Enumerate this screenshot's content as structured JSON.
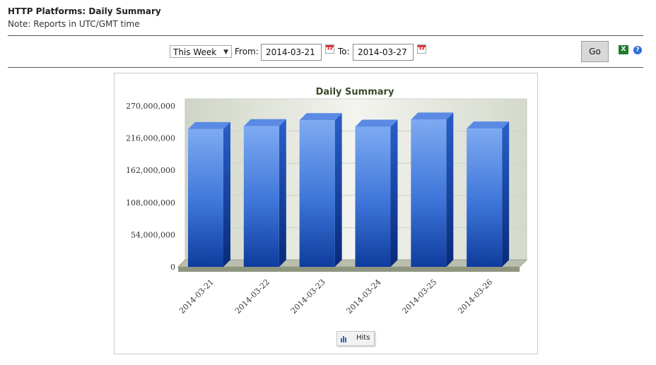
{
  "page": {
    "title": "HTTP Platforms: Daily Summary",
    "note": "Note: Reports in UTC/GMT time"
  },
  "filter": {
    "period": "This Week",
    "from_label": "From:",
    "from_value": "2014-03-21",
    "to_label": "To:",
    "to_value": "2014-03-27",
    "calendar_icon": "calendar-icon",
    "go_label": "Go",
    "export_icon": "excel-export-icon",
    "help_icon": "help-icon"
  },
  "chart_data": {
    "type": "bar",
    "title": "Daily Summary",
    "categories": [
      "2014-03-21",
      "2014-03-22",
      "2014-03-23",
      "2014-03-24",
      "2014-03-25",
      "2014-03-26"
    ],
    "series": [
      {
        "name": "Hits",
        "values": [
          231000000,
          236000000,
          246000000,
          235000000,
          247000000,
          232000000
        ]
      }
    ],
    "ylim": [
      0,
      270000000
    ],
    "yticks": [
      "0",
      "54,000,000",
      "108,000,000",
      "162,000,000",
      "216,000,000",
      "270,000,000"
    ],
    "grid": true,
    "legend": "bottom-center",
    "colors": {
      "bar_light": "#7aa5f0",
      "bar_dark": "#1343a8",
      "bar_side": "#0c2e86",
      "bar_top": "#5b8be6",
      "wall": "#dfe3d8",
      "floor": "#a8b09a"
    }
  }
}
